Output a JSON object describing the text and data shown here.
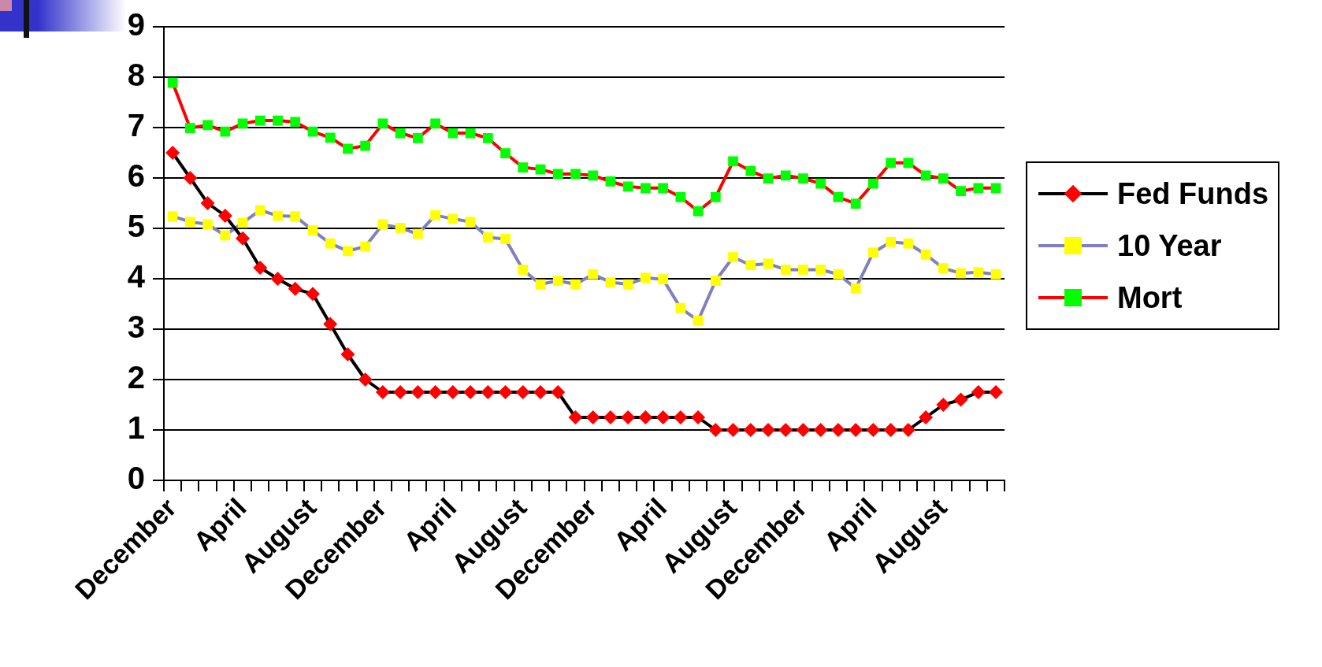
{
  "chart_data": {
    "type": "line",
    "categories": [
      "December",
      null,
      null,
      null,
      "April",
      null,
      null,
      null,
      "August",
      null,
      null,
      null,
      "December",
      null,
      null,
      null,
      "April",
      null,
      null,
      null,
      "August",
      null,
      null,
      null,
      "December",
      null,
      null,
      null,
      "April",
      null,
      null,
      null,
      "August",
      null,
      null,
      null,
      "December",
      null,
      null,
      null,
      "April",
      null,
      null,
      null,
      "August",
      null,
      null,
      null
    ],
    "ylim": [
      0,
      9
    ],
    "yticks": [
      0,
      1,
      2,
      3,
      4,
      5,
      6,
      7,
      8,
      9
    ],
    "grid": "y",
    "legend": "right",
    "line_style": "solid",
    "series": [
      {
        "name": "Fed Funds",
        "color": "#000000",
        "colors": [
          "#ff0000",
          "#ff0000",
          "#ff0000",
          "#ff0000",
          "#ff0000",
          "#ff0000",
          "#ff0000",
          "#ff0000",
          "#ff0000",
          "#ff0000",
          "#ff0000",
          "#ff0000",
          "#ff0000",
          "#ff0000",
          "#ff0000",
          "#ff0000",
          "#ff0000",
          "#ff0000",
          "#ff0000",
          "#ff0000",
          "#ff0000",
          "#ff0000",
          "#ff0000",
          "#ff0000",
          "#ff0000",
          "#ff0000",
          "#ff0000",
          "#ff0000",
          "#ff0000",
          "#ff0000",
          "#ff0000",
          "#ff0000",
          "#ff0000",
          "#ff0000",
          "#ff0000",
          "#ff0000",
          "#ff0000",
          "#ff0000",
          "#ff0000",
          "#ff0000",
          "#ff0000",
          "#ff0000",
          "#ff0000",
          "#ff0000",
          "#ff0000",
          "#ff0000",
          "#ff0000",
          "#ff0000"
        ],
        "marker": "diamond",
        "values": [
          6.5,
          6.0,
          5.5,
          5.25,
          4.8,
          4.22,
          4.0,
          3.8,
          3.7,
          3.1,
          2.5,
          2.0,
          1.75,
          1.75,
          1.75,
          1.75,
          1.75,
          1.75,
          1.75,
          1.75,
          1.75,
          1.75,
          1.75,
          1.25,
          1.25,
          1.25,
          1.25,
          1.25,
          1.25,
          1.25,
          1.25,
          1.0,
          1.0,
          1.0,
          1.0,
          1.0,
          1.0,
          1.0,
          1.0,
          1.0,
          1.0,
          1.0,
          1.0,
          1.25,
          1.5,
          1.6,
          1.75,
          1.75
        ]
      },
      {
        "name": "10 Year",
        "color": "#8080c0",
        "colors": [
          "#ffff00",
          "#ffff00",
          "#ffff00",
          "#ffff00",
          "#ffff00",
          "#ffff00",
          "#ffff00",
          "#ffff00",
          "#ffff00",
          "#ffff00",
          "#ffff00",
          "#ffff00",
          "#ffff00",
          "#ffff00",
          "#ffff00",
          "#ffff00",
          "#ffff00",
          "#ffff00",
          "#ffff00",
          "#ffff00",
          "#ffff00",
          "#ffff00",
          "#ffff00",
          "#ffff00",
          "#ffff00",
          "#ffff00",
          "#ffff00",
          "#ffff00",
          "#ffff00",
          "#ffff00",
          "#ffff00",
          "#ffff00",
          "#ffff00",
          "#ffff00",
          "#ffff00",
          "#ffff00",
          "#ffff00",
          "#ffff00",
          "#ffff00",
          "#ffff00",
          "#ffff00",
          "#ffff00",
          "#ffff00",
          "#ffff00",
          "#ffff00",
          "#ffff00",
          "#ffff00",
          "#ffff00"
        ],
        "marker": "square",
        "values": [
          5.24,
          5.13,
          5.08,
          4.86,
          5.11,
          5.36,
          5.25,
          5.24,
          4.96,
          4.7,
          4.55,
          4.64,
          5.08,
          5.01,
          4.89,
          5.26,
          5.19,
          5.13,
          4.82,
          4.79,
          4.18,
          3.89,
          3.96,
          3.89,
          4.09,
          3.93,
          3.89,
          4.02,
          3.99,
          3.42,
          3.17,
          3.96,
          4.43,
          4.27,
          4.3,
          4.18,
          4.18,
          4.18,
          4.09,
          3.81,
          4.52,
          4.73,
          4.7,
          4.48,
          4.21,
          4.11,
          4.13,
          4.09
        ]
      },
      {
        "name": "Mort",
        "color": "#ff0000",
        "colors": [
          "#00ff00",
          "#00ff00",
          "#00ff00",
          "#00ff00",
          "#00ff00",
          "#00ff00",
          "#00ff00",
          "#00ff00",
          "#00ff00",
          "#00ff00",
          "#00ff00",
          "#00ff00",
          "#00ff00",
          "#00ff00",
          "#00ff00",
          "#00ff00",
          "#00ff00",
          "#00ff00",
          "#00ff00",
          "#00ff00",
          "#00ff00",
          "#00ff00",
          "#00ff00",
          "#00ff00",
          "#00ff00",
          "#00ff00",
          "#00ff00",
          "#00ff00",
          "#00ff00",
          "#00ff00",
          "#00ff00",
          "#00ff00",
          "#00ff00",
          "#00ff00",
          "#00ff00",
          "#00ff00",
          "#00ff00",
          "#00ff00",
          "#00ff00",
          "#00ff00",
          "#00ff00",
          "#00ff00",
          "#00ff00",
          "#00ff00",
          "#00ff00",
          "#00ff00",
          "#00ff00",
          "#00ff00"
        ],
        "marker": "square",
        "values": [
          7.89,
          6.99,
          7.05,
          6.92,
          7.08,
          7.14,
          7.14,
          7.11,
          6.92,
          6.8,
          6.58,
          6.64,
          7.08,
          6.89,
          6.79,
          7.08,
          6.89,
          6.89,
          6.79,
          6.49,
          6.21,
          6.17,
          6.08,
          6.08,
          6.05,
          5.93,
          5.83,
          5.8,
          5.8,
          5.62,
          5.34,
          5.62,
          6.33,
          6.14,
          5.99,
          6.05,
          5.99,
          5.89,
          5.62,
          5.49,
          5.89,
          6.3,
          6.3,
          6.05,
          5.99,
          5.74,
          5.8,
          5.8
        ]
      }
    ]
  }
}
